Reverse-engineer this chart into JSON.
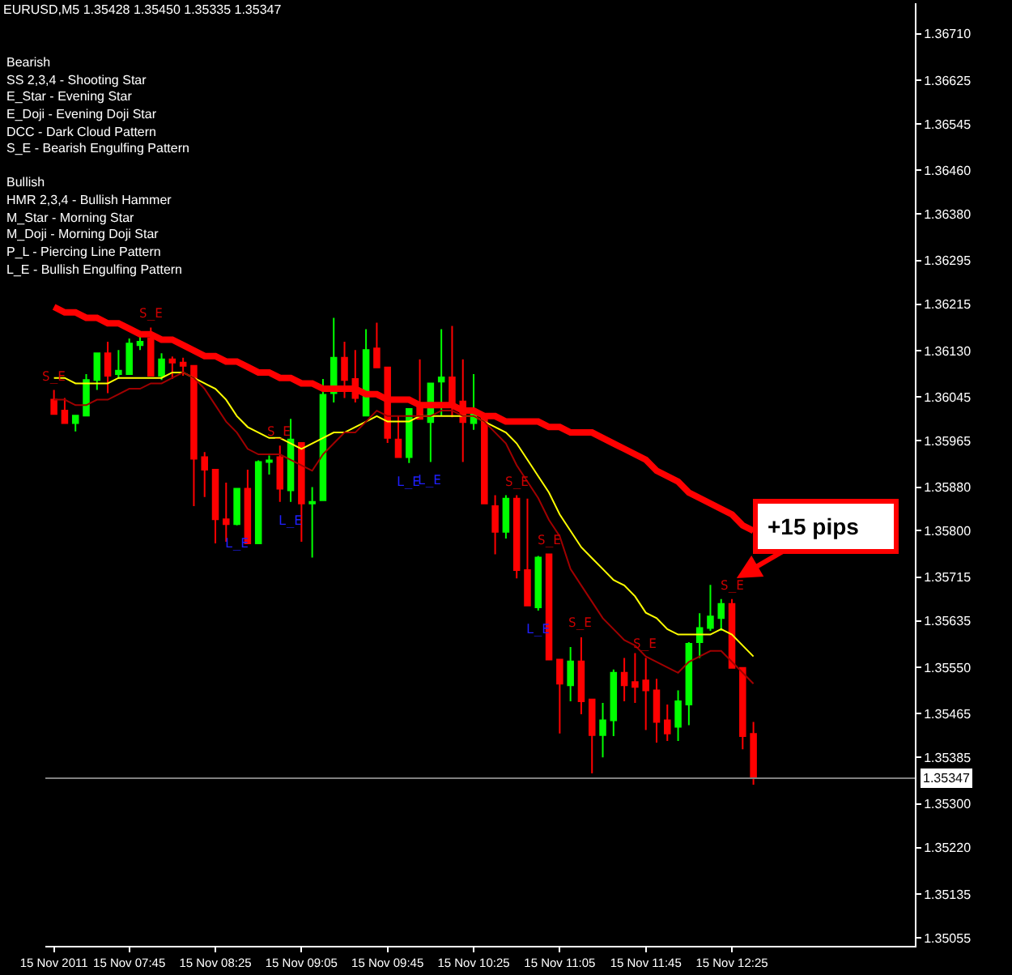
{
  "chart_data": {
    "type": "candlestick",
    "title": "EURUSD,M5 1.35428 1.35450 1.35335 1.35347",
    "x": [
      "2011-11-15T07:10",
      "2011-11-15T07:15",
      "2011-11-15T07:20",
      "2011-11-15T07:25",
      "2011-11-15T07:30",
      "2011-11-15T07:35",
      "2011-11-15T07:40",
      "2011-11-15T07:45",
      "2011-11-15T07:50",
      "2011-11-15T07:55",
      "2011-11-15T08:00",
      "2011-11-15T08:05",
      "2011-11-15T08:10",
      "2011-11-15T08:15",
      "2011-11-15T08:20",
      "2011-11-15T08:25",
      "2011-11-15T08:30",
      "2011-11-15T08:35",
      "2011-11-15T08:40",
      "2011-11-15T08:45",
      "2011-11-15T08:50",
      "2011-11-15T08:55",
      "2011-11-15T09:00",
      "2011-11-15T09:05",
      "2011-11-15T09:10",
      "2011-11-15T09:15",
      "2011-11-15T09:20",
      "2011-11-15T09:25",
      "2011-11-15T09:30",
      "2011-11-15T09:35",
      "2011-11-15T09:40",
      "2011-11-15T09:45",
      "2011-11-15T09:50",
      "2011-11-15T09:55",
      "2011-11-15T10:00",
      "2011-11-15T10:05",
      "2011-11-15T10:10",
      "2011-11-15T10:15",
      "2011-11-15T10:20",
      "2011-11-15T10:25",
      "2011-11-15T10:30",
      "2011-11-15T10:35",
      "2011-11-15T10:40",
      "2011-11-15T10:45",
      "2011-11-15T10:50",
      "2011-11-15T10:55",
      "2011-11-15T11:00",
      "2011-11-15T11:05",
      "2011-11-15T11:10",
      "2011-11-15T11:15",
      "2011-11-15T11:20",
      "2011-11-15T11:25",
      "2011-11-15T11:30",
      "2011-11-15T11:35",
      "2011-11-15T11:40",
      "2011-11-15T11:45",
      "2011-11-15T11:50",
      "2011-11-15T11:55",
      "2011-11-15T12:00",
      "2011-11-15T12:05",
      "2011-11-15T12:10",
      "2011-11-15T12:15",
      "2011-11-15T12:20",
      "2011-11-15T12:25",
      "2011-11-15T12:30",
      "2011-11-15T12:35"
    ],
    "ohlc": [
      [
        1.3604,
        1.36058,
        1.36014,
        1.36014
      ],
      [
        1.3602,
        1.36043,
        1.35997,
        1.35997
      ],
      [
        1.35997,
        1.36011,
        1.35982,
        1.36011
      ],
      [
        1.36011,
        1.36087,
        1.36011,
        1.36076
      ],
      [
        1.36076,
        1.36125,
        1.36058,
        1.36125
      ],
      [
        1.36125,
        1.36146,
        1.36052,
        1.36084
      ],
      [
        1.36087,
        1.36131,
        1.36078,
        1.36093
      ],
      [
        1.36087,
        1.36152,
        1.36087,
        1.36143
      ],
      [
        1.3614,
        1.36157,
        1.36131,
        1.36146
      ],
      [
        1.36152,
        1.36172,
        1.36084,
        1.36084
      ],
      [
        1.36084,
        1.36125,
        1.36076,
        1.36114
      ],
      [
        1.36114,
        1.36119,
        1.36078,
        1.36108
      ],
      [
        1.36108,
        1.36117,
        1.36084,
        1.36102
      ],
      [
        1.36102,
        1.36102,
        1.35845,
        1.35932
      ],
      [
        1.35935,
        1.35944,
        1.35862,
        1.35912
      ],
      [
        1.35912,
        1.35912,
        1.35777,
        1.35821
      ],
      [
        1.35821,
        1.35888,
        1.3578,
        1.35812
      ],
      [
        1.35812,
        1.35877,
        1.3581,
        1.35877
      ],
      [
        1.35877,
        1.35912,
        1.35777,
        1.35777
      ],
      [
        1.35777,
        1.35929,
        1.35777,
        1.35926
      ],
      [
        1.35926,
        1.35938,
        1.35903,
        1.35929
      ],
      [
        1.35935,
        1.35956,
        1.35853,
        1.35877
      ],
      [
        1.35874,
        1.36005,
        1.35853,
        1.35967
      ],
      [
        1.35961,
        1.35961,
        1.3578,
        1.3585
      ],
      [
        1.3585,
        1.3588,
        1.35751,
        1.35853
      ],
      [
        1.35856,
        1.36078,
        1.35856,
        1.36049
      ],
      [
        1.36052,
        1.3619,
        1.36035,
        1.36117
      ],
      [
        1.36117,
        1.36146,
        1.36043,
        1.36076
      ],
      [
        1.36078,
        1.36131,
        1.36035,
        1.36043
      ],
      [
        1.36011,
        1.36169,
        1.36011,
        1.36131
      ],
      [
        1.36134,
        1.36181,
        1.36099,
        1.36099
      ],
      [
        1.36099,
        1.36099,
        1.35961,
        1.3597
      ],
      [
        1.35967,
        1.36011,
        1.35935,
        1.35935
      ],
      [
        1.35935,
        1.36023,
        1.35924,
        1.36023
      ],
      [
        1.36026,
        1.36114,
        1.36005,
        1.36005
      ],
      [
        1.35999,
        1.3607,
        1.35926,
        1.3607
      ],
      [
        1.36073,
        1.36169,
        1.36011,
        1.36081
      ],
      [
        1.36081,
        1.36175,
        1.36008,
        1.36035
      ],
      [
        1.36037,
        1.36114,
        1.35926,
        1.35999
      ],
      [
        1.35997,
        1.36087,
        1.35985,
        1.36017
      ],
      [
        1.36014,
        1.36014,
        1.3585,
        1.3585
      ],
      [
        1.35845,
        1.35865,
        1.35757,
        1.35798
      ],
      [
        1.35798,
        1.35865,
        1.35786,
        1.35859
      ],
      [
        1.35859,
        1.35865,
        1.35713,
        1.35728
      ],
      [
        1.35728,
        1.35859,
        1.35663,
        1.35663
      ],
      [
        1.3566,
        1.35754,
        1.35654,
        1.35751
      ],
      [
        1.35757,
        1.35757,
        1.35564,
        1.35564
      ],
      [
        1.35564,
        1.35564,
        1.35429,
        1.3552
      ],
      [
        1.35517,
        1.35587,
        1.35488,
        1.35561
      ],
      [
        1.35561,
        1.35605,
        1.35464,
        1.35488
      ],
      [
        1.35491,
        1.35491,
        1.35356,
        1.35426
      ],
      [
        1.35426,
        1.35485,
        1.35385,
        1.35453
      ],
      [
        1.35453,
        1.35546,
        1.35424,
        1.3554
      ],
      [
        1.3554,
        1.35567,
        1.35488,
        1.35517
      ],
      [
        1.35523,
        1.35576,
        1.35485,
        1.35514
      ],
      [
        1.35526,
        1.35567,
        1.35435,
        1.35508
      ],
      [
        1.35508,
        1.35529,
        1.35412,
        1.3545
      ],
      [
        1.35453,
        1.35482,
        1.35415,
        1.35429
      ],
      [
        1.35441,
        1.35508,
        1.35415,
        1.35488
      ],
      [
        1.35482,
        1.35596,
        1.35444,
        1.35593
      ],
      [
        1.35596,
        1.35649,
        1.35567,
        1.35622
      ],
      [
        1.35622,
        1.35701,
        1.35617,
        1.35643
      ],
      [
        1.3564,
        1.35675,
        1.35617,
        1.35666
      ],
      [
        1.35666,
        1.35675,
        1.35549,
        1.35549
      ],
      [
        1.35549,
        1.35549,
        1.354,
        1.35424
      ],
      [
        1.35428,
        1.3545,
        1.35335,
        1.35347
      ]
    ],
    "colors": [
      "#ff0000",
      "#ff0000",
      "#00ff00",
      "#00ff00",
      "#00ff00",
      "#ff0000",
      "#00ff00",
      "#00ff00",
      "#00ff00",
      "#ff0000",
      "#00ff00",
      "#ff0000",
      "#ff0000",
      "#ff0000",
      "#ff0000",
      "#ff0000",
      "#ff0000",
      "#00ff00",
      "#ff0000",
      "#00ff00",
      "#00ff00",
      "#ff0000",
      "#00ff00",
      "#ff0000",
      "#00ff00",
      "#00ff00",
      "#00ff00",
      "#ff0000",
      "#ff0000",
      "#00ff00",
      "#ff0000",
      "#ff0000",
      "#ff0000",
      "#00ff00",
      "#ff0000",
      "#00ff00",
      "#00ff00",
      "#ff0000",
      "#ff0000",
      "#00ff00",
      "#ff0000",
      "#ff0000",
      "#00ff00",
      "#ff0000",
      "#ff0000",
      "#00ff00",
      "#ff0000",
      "#ff0000",
      "#00ff00",
      "#ff0000",
      "#ff0000",
      "#00ff00",
      "#00ff00",
      "#ff0000",
      "#ff0000",
      "#ff0000",
      "#ff0000",
      "#ff0000",
      "#00ff00",
      "#00ff00",
      "#00ff00",
      "#00ff00",
      "#00ff00",
      "#ff0000",
      "#ff0000",
      "#ff0000"
    ],
    "series": [
      {
        "type": "line",
        "color": "#ff0000",
        "values": [
          1.3621,
          1.362,
          1.362,
          1.3619,
          1.3619,
          1.3618,
          1.3618,
          1.3617,
          1.3616,
          1.3616,
          1.3615,
          1.3615,
          1.3614,
          1.3613,
          1.3612,
          1.3612,
          1.3611,
          1.3611,
          1.361,
          1.3609,
          1.3609,
          1.3608,
          1.3608,
          1.3607,
          1.3607,
          1.3606,
          1.3606,
          1.3606,
          1.3606,
          1.3605,
          1.3605,
          1.3604,
          1.3604,
          1.3604,
          1.3603,
          1.3603,
          1.3603,
          1.3603,
          1.3602,
          1.3602,
          1.3601,
          1.3601,
          1.36,
          1.36,
          1.36,
          1.36,
          1.3599,
          1.3599,
          1.3598,
          1.3598,
          1.3598,
          1.3597,
          1.3596,
          1.3595,
          1.3594,
          1.3593,
          1.3591,
          1.359,
          1.3589,
          1.3587,
          1.3586,
          1.3585,
          1.3584,
          1.3583,
          1.3581,
          1.358
        ]
      },
      {
        "type": "line",
        "color": "#ffff00",
        "values": [
          1.3608,
          1.3608,
          1.3607,
          1.3607,
          1.3607,
          1.3607,
          1.3608,
          1.3608,
          1.3608,
          1.3608,
          1.3608,
          1.3609,
          1.3609,
          1.3608,
          1.3607,
          1.3606,
          1.3604,
          1.3601,
          1.3599,
          1.3598,
          1.3597,
          1.3597,
          1.3596,
          1.3595,
          1.3596,
          1.3597,
          1.3598,
          1.3598,
          1.3599,
          1.36,
          1.3601,
          1.36,
          1.36,
          1.36,
          1.3601,
          1.3601,
          1.3601,
          1.3601,
          1.3601,
          1.3601,
          1.36,
          1.3599,
          1.3598,
          1.3596,
          1.3593,
          1.359,
          1.3587,
          1.3583,
          1.358,
          1.3577,
          1.3575,
          1.3573,
          1.3571,
          1.357,
          1.3568,
          1.3565,
          1.3564,
          1.3562,
          1.3561,
          1.3561,
          1.3561,
          1.3561,
          1.3562,
          1.3561,
          1.3559,
          1.3557
        ]
      },
      {
        "type": "line",
        "color": "#a00000",
        "values": [
          1.3604,
          1.3604,
          1.3603,
          1.3603,
          1.3604,
          1.3604,
          1.3605,
          1.3606,
          1.3606,
          1.3607,
          1.3607,
          1.3608,
          1.3609,
          1.3608,
          1.3606,
          1.3603,
          1.36,
          1.3598,
          1.3595,
          1.3594,
          1.3594,
          1.3594,
          1.3593,
          1.3592,
          1.3591,
          1.3594,
          1.3596,
          1.3598,
          1.3598,
          1.36,
          1.3602,
          1.3601,
          1.3601,
          1.3601,
          1.3601,
          1.3601,
          1.3602,
          1.3602,
          1.3601,
          1.3601,
          1.36,
          1.3598,
          1.3596,
          1.3592,
          1.3589,
          1.3586,
          1.3582,
          1.3579,
          1.3573,
          1.357,
          1.3567,
          1.3564,
          1.3562,
          1.356,
          1.3559,
          1.3557,
          1.3556,
          1.3555,
          1.3554,
          1.3556,
          1.3557,
          1.3558,
          1.3558,
          1.3556,
          1.3554,
          1.3552
        ]
      }
    ],
    "xlim": [
      "2011-11-15T07:06",
      "2011-11-15T13:50"
    ],
    "xticks": [
      {
        "value": "2011-11-15T07:10",
        "label": "15 Nov 2011"
      },
      {
        "value": "2011-11-15T07:45",
        "label": "15 Nov 07:45"
      },
      {
        "value": "2011-11-15T08:25",
        "label": "15 Nov 08:25"
      },
      {
        "value": "2011-11-15T09:05",
        "label": "15 Nov 09:05"
      },
      {
        "value": "2011-11-15T09:45",
        "label": "15 Nov 09:45"
      },
      {
        "value": "2011-11-15T10:25",
        "label": "15 Nov 10:25"
      },
      {
        "value": "2011-11-15T11:05",
        "label": "15 Nov 11:05"
      },
      {
        "value": "2011-11-15T11:45",
        "label": "15 Nov 11:45"
      },
      {
        "value": "2011-11-15T12:25",
        "label": "15 Nov 12:25"
      }
    ],
    "ylim": [
      1.3504,
      1.36766
    ],
    "yticks": [
      {
        "value": 1.3671,
        "label": "1.36710"
      },
      {
        "value": 1.36625,
        "label": "1.36625"
      },
      {
        "value": 1.36545,
        "label": "1.36545"
      },
      {
        "value": 1.3646,
        "label": "1.36460"
      },
      {
        "value": 1.3638,
        "label": "1.36380"
      },
      {
        "value": 1.36295,
        "label": "1.36295"
      },
      {
        "value": 1.36215,
        "label": "1.36215"
      },
      {
        "value": 1.3613,
        "label": "1.36130"
      },
      {
        "value": 1.36045,
        "label": "1.36045"
      },
      {
        "value": 1.35965,
        "label": "1.35965"
      },
      {
        "value": 1.3588,
        "label": "1.35880"
      },
      {
        "value": 1.358,
        "label": "1.35800"
      },
      {
        "value": 1.35715,
        "label": "1.35715"
      },
      {
        "value": 1.35635,
        "label": "1.35635"
      },
      {
        "value": 1.3555,
        "label": "1.35550"
      },
      {
        "value": 1.35465,
        "label": "1.35465"
      },
      {
        "value": 1.35385,
        "label": "1.35385"
      },
      {
        "value": 1.353,
        "label": "1.35300"
      },
      {
        "value": 1.3522,
        "label": "1.35220"
      },
      {
        "value": 1.35135,
        "label": "1.35135"
      },
      {
        "value": 1.35055,
        "label": "1.35055"
      }
    ],
    "ref_lines": [
      {
        "axis": "y",
        "value": 1.35347,
        "label": "1.35347",
        "color": "#808080"
      }
    ],
    "annotations": [
      "Bearish",
      "SS 2,3,4 - Shooting Star",
      "E_Star - Evening Star",
      "E_Doji - Evening Doji Star",
      "DCC - Dark Cloud Pattern",
      "S_E - Bearish Engulfing Pattern",
      "Bullish",
      "HMR 2,3,4 - Bullish Hammer",
      "M_Star - Morning Star",
      "M_Doji - Morning Doji Star",
      "P_L - Piercing Line Pattern",
      "L_E - Bullish Engulfing Pattern",
      "+15 pips",
      {
        "text": "S_E",
        "x": "2011-11-15T07:10",
        "y": 1.36058
      },
      {
        "text": "S_E",
        "x": "2011-11-15T07:55",
        "y": 1.36172
      },
      {
        "text": "S_E",
        "x": "2011-11-15T08:55",
        "y": 1.35956
      },
      {
        "text": "S_E",
        "x": "2011-11-15T10:45",
        "y": 1.35865
      },
      {
        "text": "S_E",
        "x": "2011-11-15T11:00",
        "y": 1.35757
      },
      {
        "text": "S_E",
        "x": "2011-11-15T11:15",
        "y": 1.35605
      },
      {
        "text": "S_E",
        "x": "2011-11-15T11:45",
        "y": 1.35567
      },
      {
        "text": "S_E",
        "x": "2011-11-15T12:25",
        "y": 1.35675
      },
      {
        "text": "L_E",
        "x": "2011-11-15T08:35",
        "y": 1.3581
      },
      {
        "text": "L_E",
        "x": "2011-11-15T09:00",
        "y": 1.35853
      },
      {
        "text": "L_E",
        "x": "2011-11-15T09:55",
        "y": 1.35924
      },
      {
        "text": "L_E",
        "x": "2011-11-15T10:05",
        "y": 1.35926
      },
      {
        "text": "L_E",
        "x": "2011-11-15T10:55",
        "y": 1.35654
      }
    ]
  }
}
